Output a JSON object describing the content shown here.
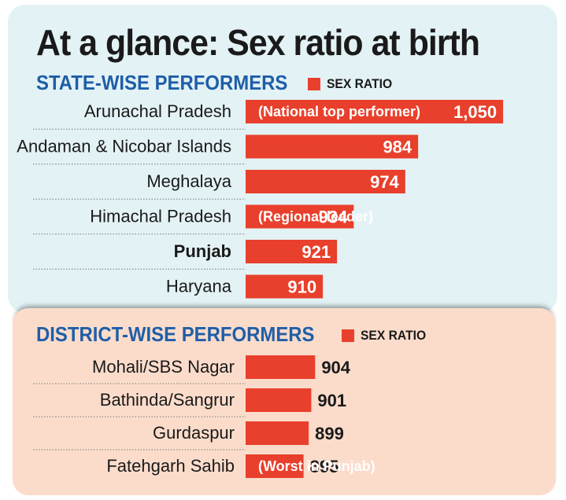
{
  "title": "At a glance: Sex ratio at birth",
  "chart_data": [
    {
      "type": "bar",
      "section_title": "STATE-WISE PERFORMERS",
      "legend": "SEX RATIO",
      "bar_color": "#e8402c",
      "value_placement": "inside",
      "xlim": [
        0,
        1075
      ],
      "categories": [
        "Arunachal Pradesh",
        "Andaman & Nicobar Islands",
        "Meghalaya",
        "Himachal Pradesh",
        "Punjab",
        "Haryana"
      ],
      "values": [
        1050,
        984,
        974,
        934,
        921,
        910
      ],
      "value_labels": [
        "1,050",
        "984",
        "974",
        "934",
        "921",
        "910"
      ],
      "bold_categories": [
        "Punjab"
      ],
      "annotations": [
        {
          "category": "Arunachal Pradesh",
          "text": "(National top performer)"
        },
        {
          "category": "Himachal Pradesh",
          "text": "(Regional leader)"
        }
      ]
    },
    {
      "type": "bar",
      "section_title": "DISTRICT-WISE PERFORMERS",
      "legend": "SEX RATIO",
      "bar_color": "#e8402c",
      "value_placement": "outside",
      "xlim": [
        0,
        1075
      ],
      "categories": [
        "Mohali/SBS Nagar",
        "Bathinda/Sangrur",
        "Gurdaspur",
        "Fatehgarh Sahib"
      ],
      "values": [
        904,
        901,
        899,
        895
      ],
      "value_labels": [
        "904",
        "901",
        "899",
        "895"
      ],
      "bold_categories": [],
      "annotations": [
        {
          "category": "Fatehgarh Sahib",
          "text": "(Worst in Punjab)"
        }
      ]
    }
  ]
}
